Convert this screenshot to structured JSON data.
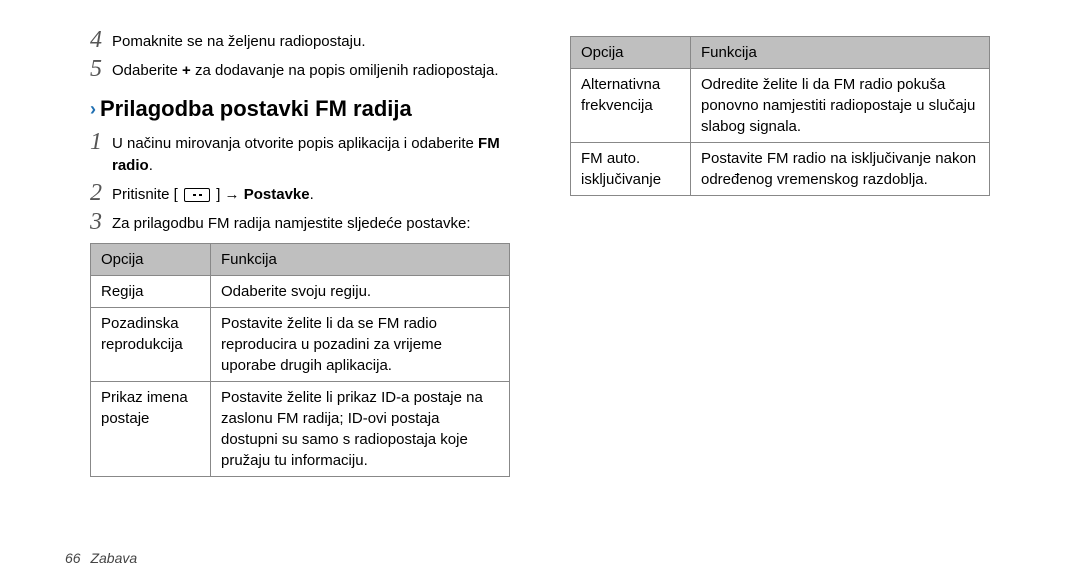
{
  "left": {
    "step4": "Pomaknite se na željenu radiopostaju.",
    "step5": "Odaberite <b>+</b> za dodavanje na popis omiljenih radiopostaja.",
    "heading": "Prilagodba postavki FM radija",
    "step1": "U načinu mirovanja otvorite popis aplikacija i odaberite <b>FM radio</b>.",
    "step2_pre": "Pritisnite [",
    "step2_post": "] → <b>Postavke</b>.",
    "step3": "Za prilagodbu FM radija namjestite sljedeće postavke:",
    "table": {
      "h1": "Opcija",
      "h2": "Funkcija",
      "rows": [
        {
          "c1": "Regija",
          "c2": "Odaberite svoju regiju."
        },
        {
          "c1": "Pozadinska reprodukcija",
          "c2": "Postavite želite li da se FM radio reproducira u pozadini za vrijeme uporabe drugih aplikacija."
        },
        {
          "c1": "Prikaz imena postaje",
          "c2": "Postavite želite li prikaz ID-a postaje na zaslonu FM radija; ID-ovi postaja dostupni su samo s radiopostaja koje pružaju tu informaciju."
        }
      ]
    }
  },
  "right": {
    "table": {
      "h1": "Opcija",
      "h2": "Funkcija",
      "rows": [
        {
          "c1": "Alternativna frekvencija",
          "c2": "Odredite želite li da FM radio pokuša ponovno namjestiti radiopostaje u slučaju slabog signala."
        },
        {
          "c1": "FM auto. isključivanje",
          "c2": "Postavite FM radio na isključivanje nakon određenog vremenskog razdoblja."
        }
      ]
    }
  },
  "footer": {
    "page": "66",
    "section": "Zabava"
  }
}
